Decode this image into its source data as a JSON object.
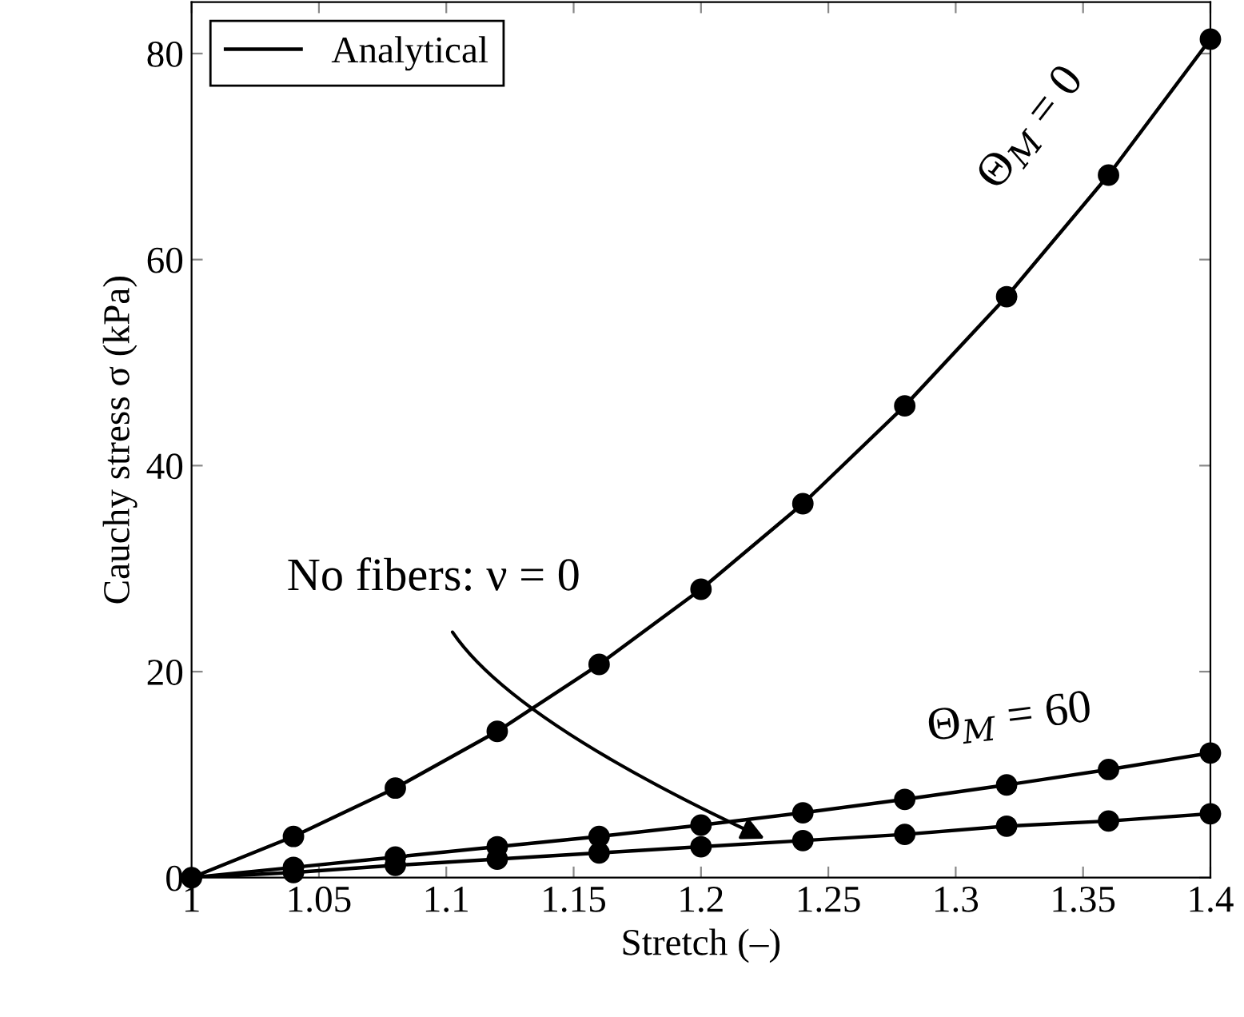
{
  "chart_data": {
    "type": "line",
    "xlabel": "Stretch (–)",
    "ylabel": "Cauchy stress σ (kPa)",
    "x": [
      1,
      1.04,
      1.08,
      1.12,
      1.16,
      1.2,
      1.24,
      1.28,
      1.32,
      1.36,
      1.4
    ],
    "series": [
      {
        "name": "Analytical",
        "color": "#000000",
        "marker": "none",
        "values": [
          0,
          4.0,
          8.7,
          14.2,
          20.7,
          28.0,
          36.3,
          45.8,
          56.4,
          68.2,
          81.4
        ]
      },
      {
        "color": "#000000",
        "marker": "none",
        "values": [
          0,
          1.0,
          2.0,
          3.0,
          4.0,
          5.1,
          6.3,
          7.6,
          9.0,
          10.5,
          12.1
        ]
      },
      {
        "color": "#000000",
        "marker": "none",
        "values": [
          0,
          0.5,
          1.2,
          1.8,
          2.4,
          3.0,
          3.6,
          4.2,
          5.0,
          5.5,
          6.2
        ]
      },
      {
        "type": "scatter",
        "color": "#000000",
        "marker": "circle",
        "values": [
          0,
          4.0,
          8.7,
          14.2,
          20.7,
          28.0,
          36.3,
          45.8,
          56.4,
          68.2,
          81.4
        ]
      },
      {
        "type": "scatter",
        "color": "#000000",
        "marker": "circle",
        "values": [
          null,
          1.0,
          2.0,
          3.0,
          4.0,
          5.1,
          6.3,
          7.6,
          9.0,
          10.5,
          12.1
        ]
      },
      {
        "type": "scatter",
        "color": "#000000",
        "marker": "circle",
        "values": [
          null,
          0.5,
          1.2,
          1.8,
          2.4,
          3.0,
          3.6,
          4.2,
          5.0,
          5.5,
          6.2
        ]
      }
    ],
    "xlim": [
      1,
      1.4
    ],
    "ylim": [
      0,
      85
    ],
    "xticks": [
      1,
      1.05,
      1.1,
      1.15,
      1.2,
      1.25,
      1.3,
      1.35,
      1.4
    ],
    "yticks": [
      0,
      20,
      40,
      60,
      80
    ],
    "annotations": [
      "Θ$_{M}$ = 0",
      "Θ$_{M}$ = 60",
      {
        "text": "No fibers: ν = 0",
        "x": 1.225,
        "y": 3.8
      }
    ],
    "legend": "top left",
    "line_style": "solid"
  }
}
